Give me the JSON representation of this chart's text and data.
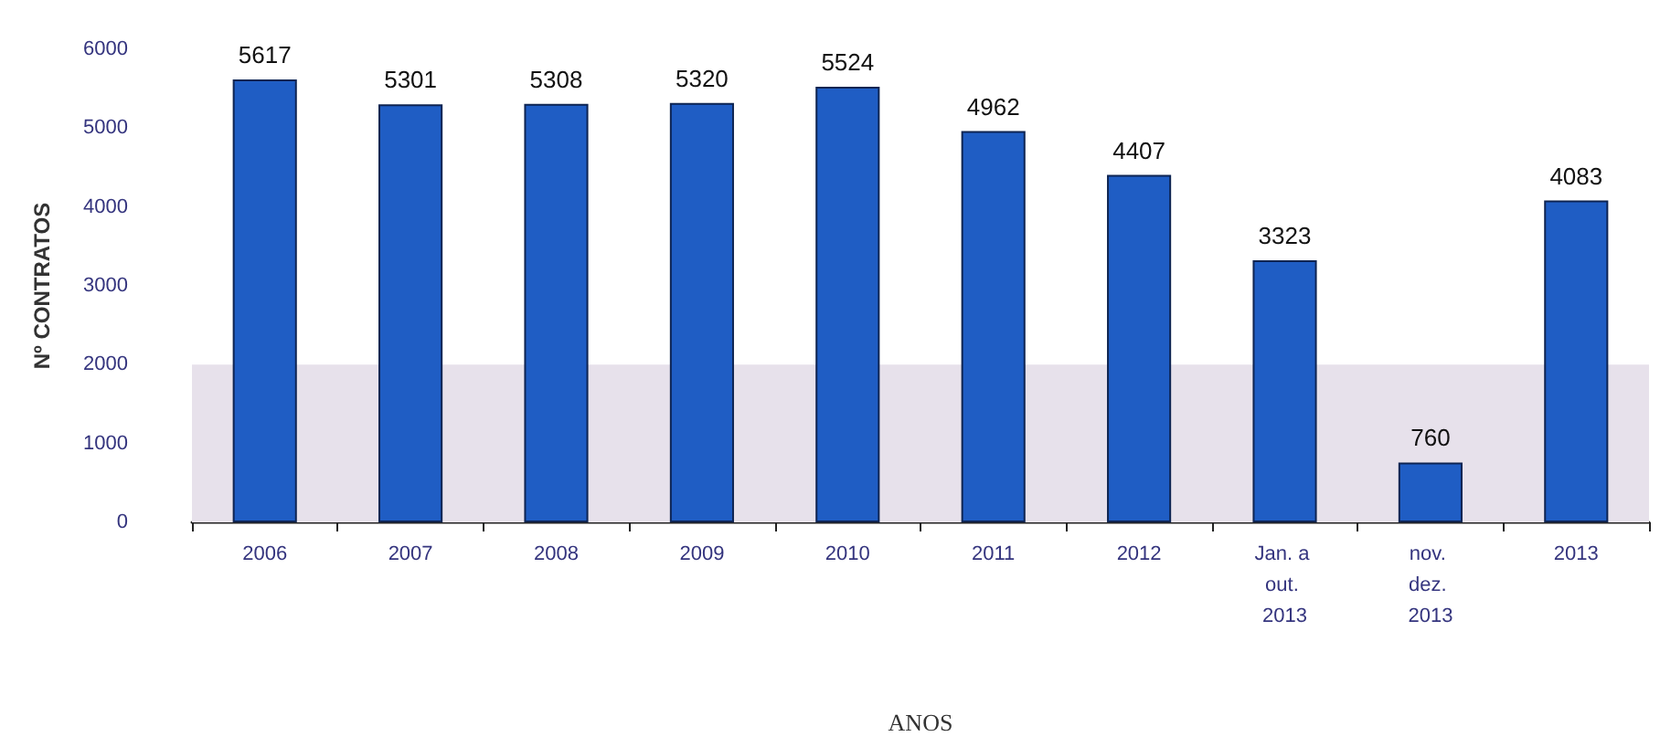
{
  "chart_data": {
    "type": "bar",
    "xlabel": "ANOS",
    "ylabel": "Nº CONTRATOS",
    "categories": [
      "2006",
      "2007",
      "2008",
      "2009",
      "2010",
      "2011",
      "2012",
      "Jan. a out. 2013",
      "nov. dez. 2013",
      "2013"
    ],
    "values": [
      5617,
      5301,
      5308,
      5320,
      5524,
      4962,
      4407,
      3323,
      760,
      4083
    ],
    "color": "#1f5dc4",
    "ylim": [
      0,
      6000
    ],
    "yticks": [
      0,
      1000,
      2000,
      3000,
      4000,
      5000,
      6000
    ],
    "data_labels": true,
    "bands": [
      {
        "axis": "y",
        "from": 0,
        "to": 2000,
        "color": "#e7e1eb"
      }
    ]
  }
}
